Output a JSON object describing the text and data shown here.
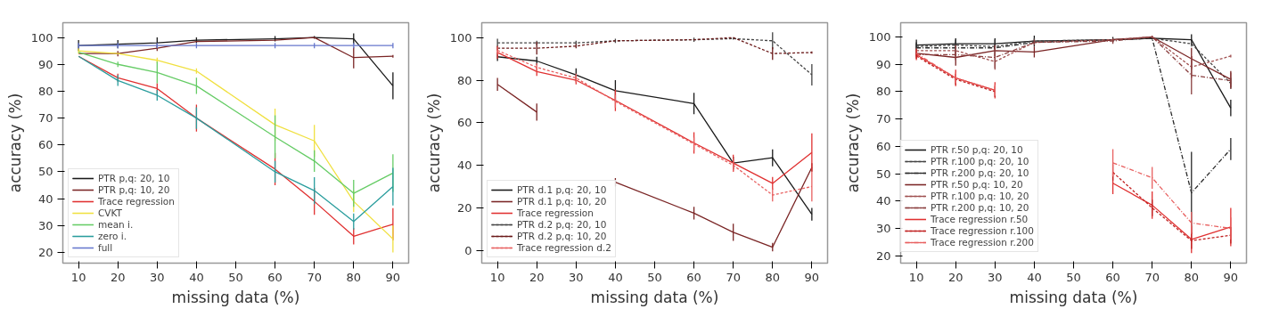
{
  "chart_data": [
    {
      "type": "line",
      "xlabel": "missing data (%)",
      "ylabel": "accuracy (%)",
      "x": [
        10,
        20,
        30,
        40,
        60,
        70,
        80,
        90
      ],
      "xlim": [
        6,
        94
      ],
      "xticks": [
        10,
        20,
        30,
        40,
        50,
        60,
        70,
        80,
        90
      ],
      "ylim": [
        16,
        105.5
      ],
      "yticks": [
        20,
        30,
        40,
        50,
        60,
        70,
        80,
        90,
        100
      ],
      "legend": "bottom left",
      "grid": false,
      "marker": "none",
      "series": [
        {
          "name": "PTR p,q: 20, 10",
          "color": "#1a1a1a",
          "line_style": "solid",
          "values": [
            97,
            97.5,
            98,
            99,
            99.5,
            100,
            99.5,
            82
          ],
          "errors": [
            2,
            1.5,
            2,
            1,
            1,
            0.5,
            2,
            5
          ]
        },
        {
          "name": "PTR p,q: 10, 20",
          "color": "#7a2525",
          "line_style": "solid",
          "values": [
            94,
            94,
            96,
            98.5,
            99,
            100,
            92.5,
            93
          ],
          "errors": [
            null,
            1,
            1,
            null,
            null,
            null,
            4,
            0.5
          ]
        },
        {
          "name": "Trace regression",
          "color": "#e03030",
          "line_style": "solid",
          "values": [
            93,
            85,
            81,
            70,
            51,
            39,
            26,
            30.5
          ],
          "errors": [
            null,
            1.5,
            2,
            5,
            6,
            5,
            3,
            6
          ]
        },
        {
          "name": "CVKT",
          "color": "#f0e040",
          "line_style": "solid",
          "values": [
            95,
            94,
            91.5,
            87.5,
            67.5,
            61.5,
            39,
            25
          ],
          "errors": [
            1,
            null,
            1,
            1,
            6,
            6,
            4,
            5
          ]
        },
        {
          "name": "mean i.",
          "color": "#66cc66",
          "line_style": "solid",
          "values": [
            94.5,
            90,
            87,
            82,
            63,
            54,
            42,
            49.5
          ],
          "errors": [
            null,
            1,
            4,
            3,
            8,
            4,
            5,
            7
          ]
        },
        {
          "name": "zero i.",
          "color": "#2a9d9d",
          "line_style": "solid",
          "values": [
            93,
            84,
            78.5,
            70,
            50,
            43,
            31.5,
            44.5
          ],
          "errors": [
            null,
            2,
            2,
            4,
            4,
            5,
            3,
            7
          ]
        },
        {
          "name": "full",
          "color": "#6677cc",
          "line_style": "solid",
          "values": [
            97,
            97,
            97,
            97,
            97,
            97,
            97,
            97
          ],
          "errors": [
            1,
            1,
            1,
            1,
            1,
            1,
            1,
            1
          ]
        }
      ]
    },
    {
      "type": "line",
      "xlabel": "missing data (%)",
      "ylabel": "accuracy (%)",
      "x": [
        10,
        20,
        30,
        40,
        60,
        70,
        80,
        90
      ],
      "xlim": [
        6,
        94
      ],
      "xticks": [
        10,
        20,
        30,
        40,
        50,
        60,
        70,
        80,
        90
      ],
      "ylim": [
        -6,
        107
      ],
      "yticks": [
        0,
        20,
        40,
        60,
        80,
        100
      ],
      "legend": "bottom left",
      "grid": false,
      "marker": "none",
      "series": [
        {
          "name": "PTR d.1 p,q: 20, 10",
          "color": "#1a1a1a",
          "line_style": "solid",
          "values": [
            91,
            89,
            82.5,
            75,
            69,
            41,
            43.5,
            17
          ],
          "errors": [
            2,
            2,
            3,
            5,
            5,
            3,
            4,
            3
          ]
        },
        {
          "name": "PTR d.1 p,q: 10, 20",
          "color": "#7a2525",
          "line_style": "solid",
          "values": [
            78,
            65,
            null,
            32,
            17.5,
            8.5,
            1.5,
            39
          ],
          "errors": [
            3,
            4,
            null,
            2,
            3,
            4,
            2,
            2
          ]
        },
        {
          "name": "Trace regression",
          "color": "#e03030",
          "line_style": "solid",
          "values": [
            93,
            84,
            80,
            70.5,
            50.5,
            41,
            31.5,
            46
          ],
          "errors": [
            3,
            2,
            2,
            5,
            5,
            4,
            3,
            9
          ]
        },
        {
          "name": "PTR d.2 p,q: 20, 10",
          "color": "#444444",
          "line_style": "dashed",
          "values": [
            97.5,
            97.5,
            97.5,
            98.5,
            99,
            99.5,
            98.5,
            82.5
          ],
          "errors": [
            2,
            1,
            1,
            1,
            1,
            0.5,
            4,
            5
          ]
        },
        {
          "name": "PTR d.2 p,q: 10, 20",
          "color": "#6b1a1a",
          "line_style": "dashed",
          "values": [
            95,
            95,
            96,
            98.5,
            99,
            100,
            92.5,
            93
          ],
          "errors": [
            1,
            3,
            1,
            null,
            null,
            null,
            3,
            0.5
          ]
        },
        {
          "name": "Trace regression d.2",
          "color": "#e86060",
          "line_style": "dashed",
          "values": [
            94,
            86,
            81,
            70,
            50,
            40,
            26,
            30
          ],
          "errors": [
            2,
            2,
            2,
            3,
            3,
            3,
            3,
            7
          ]
        }
      ]
    },
    {
      "type": "line",
      "xlabel": "missing data (%)",
      "ylabel": "accuracy (%)",
      "x": [
        10,
        20,
        30,
        40,
        60,
        70,
        80,
        90
      ],
      "xlim": [
        6,
        94
      ],
      "xticks": [
        10,
        20,
        30,
        40,
        50,
        60,
        70,
        80,
        90
      ],
      "ylim": [
        17.3,
        105.2
      ],
      "yticks": [
        20,
        30,
        40,
        50,
        60,
        70,
        80,
        90,
        100
      ],
      "legend": "center left",
      "grid": false,
      "marker": "none",
      "series": [
        {
          "name": "PTR r.50 p,q: 20, 10",
          "color": "#1a1a1a",
          "line_style": "solid",
          "values": [
            97,
            97.5,
            97.5,
            98.5,
            99,
            99.5,
            99,
            74
          ],
          "errors": [
            2,
            2,
            2,
            2,
            1,
            0.5,
            2,
            3
          ]
        },
        {
          "name": "PTR r.100 p,q: 20, 10",
          "color": "#444444",
          "line_style": "dashed",
          "values": [
            96.5,
            97,
            96.5,
            98.5,
            99,
            99.5,
            97.5,
            83
          ],
          "errors": [
            1,
            1,
            1,
            1,
            null,
            null,
            1,
            2
          ]
        },
        {
          "name": "PTR r.200 p,q: 20, 10",
          "color": "#2a2a2a",
          "line_style": "dashdot",
          "values": [
            96,
            96,
            96,
            98,
            99,
            99.5,
            43,
            59
          ],
          "errors": [
            2,
            3,
            3,
            null,
            null,
            null,
            15,
            4
          ]
        },
        {
          "name": "PTR r.50 p,q: 10, 20",
          "color": "#7a2525",
          "line_style": "solid",
          "values": [
            94,
            92.5,
            95,
            94.5,
            99,
            100,
            92,
            84.5
          ],
          "errors": [
            1,
            3,
            2,
            2,
            null,
            0.5,
            4,
            3
          ]
        },
        {
          "name": "PTR r.100 p,q: 10, 20",
          "color": "#a05050",
          "line_style": "dashed",
          "values": [
            95,
            95,
            91,
            98,
            99,
            100,
            89,
            93
          ],
          "errors": [
            1,
            2,
            3,
            null,
            null,
            null,
            4,
            0.5
          ]
        },
        {
          "name": "PTR r.200 p,q: 10, 20",
          "color": "#8a4040",
          "line_style": "dashdot",
          "values": [
            93.5,
            93.5,
            92.5,
            98,
            98.5,
            100,
            86,
            84
          ],
          "errors": [
            1,
            2,
            4,
            1,
            1,
            null,
            7,
            3
          ]
        },
        {
          "name": "Trace regression r.50",
          "color": "#e03030",
          "line_style": "solid",
          "values": [
            93.5,
            85,
            80.5,
            null,
            46.5,
            38.5,
            26,
            30.5
          ],
          "errors": [
            2,
            3,
            3,
            null,
            4,
            5,
            5,
            7
          ]
        },
        {
          "name": "Trace regression r.100",
          "color": "#c02020",
          "line_style": "dashed",
          "values": [
            93,
            84.5,
            80,
            null,
            50.5,
            37.5,
            25.5,
            27.5
          ],
          "errors": [
            1,
            2,
            2,
            null,
            3,
            3,
            3,
            3
          ]
        },
        {
          "name": "Trace regression r.200",
          "color": "#e86060",
          "line_style": "dashdot",
          "values": [
            94,
            85,
            80.5,
            null,
            54,
            48.5,
            32,
            30
          ],
          "errors": [
            null,
            2,
            2,
            null,
            5,
            4,
            4,
            4
          ]
        }
      ]
    }
  ]
}
